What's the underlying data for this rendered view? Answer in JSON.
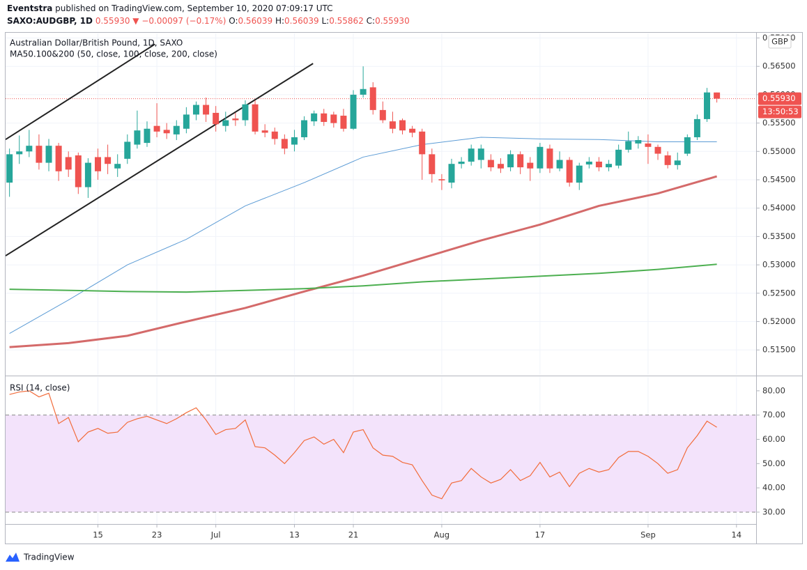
{
  "header": {
    "author": "Eventstra",
    "published": "published on TradingView.com, September 10, 2020 07:09:17 UTC",
    "symbol": "SAXO:AUDGBP, 1D",
    "price": "0.55930",
    "change": "▼ −0.00097 (−0.17%)",
    "ohlc": [
      {
        "label": "O:",
        "value": "0.56039"
      },
      {
        "label": "H:",
        "value": "0.56039"
      },
      {
        "label": "L:",
        "value": "0.55862"
      },
      {
        "label": "C:",
        "value": "0.55930"
      }
    ],
    "currency": "GBP",
    "footer": "TradingView"
  },
  "chart_data": [
    {
      "type": "candlestick",
      "title": "Australian Dollar/British Pound, 1D, SAXO",
      "subtitle": "MA50.100&200 (50, close, 100, close, 200, close)",
      "up_color": "#26a69a",
      "down_color": "#ef5350",
      "grid": true,
      "xlim": [
        -0.4,
        76
      ],
      "xticks": [
        {
          "value": 9,
          "label": "15"
        },
        {
          "value": 15,
          "label": "23"
        },
        {
          "value": 21,
          "label": "Jul"
        },
        {
          "value": 29,
          "label": "13"
        },
        {
          "value": 35,
          "label": "21"
        },
        {
          "value": 44,
          "label": "Aug"
        },
        {
          "value": 54,
          "label": "17"
        },
        {
          "value": 65,
          "label": "Sep"
        },
        {
          "value": 74,
          "label": "14"
        }
      ],
      "ylim": [
        0.5106,
        0.5708
      ],
      "yticks": [
        {
          "value": 0.515,
          "label": "0.51500"
        },
        {
          "value": 0.52,
          "label": "0.52000"
        },
        {
          "value": 0.525,
          "label": "0.52500"
        },
        {
          "value": 0.53,
          "label": "0.53000"
        },
        {
          "value": 0.535,
          "label": "0.53500"
        },
        {
          "value": 0.54,
          "label": "0.54000"
        },
        {
          "value": 0.545,
          "label": "0.54500"
        },
        {
          "value": 0.55,
          "label": "0.55000"
        },
        {
          "value": 0.555,
          "label": "0.55500"
        },
        {
          "value": 0.56,
          "label": "0.56000"
        },
        {
          "value": 0.565,
          "label": "0.56500"
        },
        {
          "value": 0.57,
          "label": "0.57000"
        }
      ],
      "open": [
        0.5445,
        0.5495,
        0.55,
        0.551,
        0.548,
        0.551,
        0.549,
        0.5493,
        0.5437,
        0.549,
        0.549,
        0.547,
        0.5487,
        0.5512,
        0.5515,
        0.5545,
        0.5538,
        0.553,
        0.554,
        0.5565,
        0.5582,
        0.5568,
        0.5545,
        0.5558,
        0.5555,
        0.5583,
        0.5537,
        0.5535,
        0.5522,
        0.5512,
        0.5525,
        0.5553,
        0.5567,
        0.5565,
        0.5563,
        0.554,
        0.56,
        0.5613,
        0.5573,
        0.5553,
        0.5555,
        0.554,
        0.5535,
        0.5495,
        0.5451,
        0.5445,
        0.5478,
        0.5482,
        0.5485,
        0.5485,
        0.5478,
        0.5472,
        0.5495,
        0.548,
        0.547,
        0.5505,
        0.547,
        0.5485,
        0.5445,
        0.5477,
        0.5482,
        0.5472,
        0.5475,
        0.5503,
        0.5514,
        0.5514,
        0.5508,
        0.5493,
        0.5476,
        0.5496,
        0.5525,
        0.5557,
        0.56039
      ],
      "high": [
        0.5505,
        0.5528,
        0.5538,
        0.553,
        0.5522,
        0.5515,
        0.55,
        0.5498,
        0.5488,
        0.5505,
        0.5512,
        0.5495,
        0.553,
        0.5572,
        0.5553,
        0.5585,
        0.555,
        0.5555,
        0.5578,
        0.5588,
        0.5595,
        0.558,
        0.557,
        0.5568,
        0.559,
        0.559,
        0.5548,
        0.5542,
        0.553,
        0.5538,
        0.5562,
        0.5572,
        0.5575,
        0.557,
        0.5575,
        0.5608,
        0.565,
        0.5622,
        0.5588,
        0.557,
        0.5558,
        0.5545,
        0.554,
        0.5505,
        0.546,
        0.5487,
        0.549,
        0.5512,
        0.5512,
        0.5495,
        0.5488,
        0.5502,
        0.55,
        0.549,
        0.5515,
        0.5512,
        0.55,
        0.549,
        0.548,
        0.549,
        0.549,
        0.5485,
        0.5512,
        0.5535,
        0.5527,
        0.553,
        0.5512,
        0.55,
        0.5498,
        0.553,
        0.5565,
        0.5612,
        0.56039
      ],
      "low": [
        0.542,
        0.5478,
        0.549,
        0.5468,
        0.5465,
        0.5448,
        0.5455,
        0.5425,
        0.5418,
        0.545,
        0.546,
        0.5455,
        0.5478,
        0.5505,
        0.5508,
        0.5525,
        0.5522,
        0.552,
        0.5532,
        0.5555,
        0.5552,
        0.5535,
        0.5535,
        0.5545,
        0.5545,
        0.553,
        0.5525,
        0.5512,
        0.5495,
        0.55,
        0.552,
        0.5545,
        0.5545,
        0.5542,
        0.5535,
        0.5538,
        0.5595,
        0.5565,
        0.555,
        0.5532,
        0.553,
        0.5525,
        0.545,
        0.5445,
        0.5432,
        0.5435,
        0.547,
        0.5475,
        0.547,
        0.5465,
        0.5462,
        0.5465,
        0.546,
        0.5448,
        0.5462,
        0.5462,
        0.5465,
        0.5438,
        0.5432,
        0.547,
        0.5465,
        0.5465,
        0.547,
        0.5498,
        0.5505,
        0.5478,
        0.5485,
        0.547,
        0.5468,
        0.5492,
        0.552,
        0.5552,
        0.55862
      ],
      "close": [
        0.5495,
        0.55,
        0.551,
        0.548,
        0.551,
        0.5465,
        0.5468,
        0.5437,
        0.548,
        0.5465,
        0.5478,
        0.5478,
        0.5517,
        0.5537,
        0.554,
        0.5535,
        0.5532,
        0.5545,
        0.5565,
        0.5582,
        0.5565,
        0.5548,
        0.5555,
        0.5555,
        0.5583,
        0.5535,
        0.5533,
        0.5522,
        0.5505,
        0.5525,
        0.5555,
        0.5567,
        0.5552,
        0.555,
        0.554,
        0.56,
        0.561,
        0.5573,
        0.5555,
        0.554,
        0.5537,
        0.5533,
        0.5495,
        0.546,
        0.5449,
        0.5478,
        0.5482,
        0.5505,
        0.5505,
        0.5472,
        0.547,
        0.5495,
        0.5472,
        0.547,
        0.5508,
        0.547,
        0.5485,
        0.5445,
        0.5475,
        0.5482,
        0.5472,
        0.5478,
        0.5503,
        0.5518,
        0.552,
        0.5508,
        0.5496,
        0.5476,
        0.5484,
        0.5525,
        0.5557,
        0.5604,
        0.5593
      ],
      "price_label": "0.55930",
      "countdown": "13:50:53",
      "ma_series": [
        {
          "color": "#5b9bd5",
          "width": 1,
          "x": [
            0,
            6,
            12,
            18,
            24,
            30,
            36,
            42,
            48,
            54,
            60,
            66,
            72
          ],
          "values": [
            0.5179,
            0.5238,
            0.53,
            0.5345,
            0.5404,
            0.5445,
            0.549,
            0.5512,
            0.5525,
            0.5522,
            0.5521,
            0.5517,
            0.5517
          ]
        },
        {
          "color": "#d46a6a",
          "width": 3,
          "x": [
            0,
            6,
            12,
            18,
            24,
            30,
            36,
            42,
            48,
            54,
            60,
            66,
            72
          ],
          "values": [
            0.5155,
            0.5162,
            0.5175,
            0.52,
            0.5224,
            0.5253,
            0.5281,
            0.5312,
            0.5343,
            0.5371,
            0.5404,
            0.5426,
            0.5456
          ]
        },
        {
          "color": "#4caf50",
          "width": 2,
          "x": [
            0,
            12,
            18,
            24,
            30,
            36,
            42,
            48,
            54,
            60,
            66,
            72
          ],
          "values": [
            0.5257,
            0.5253,
            0.5252,
            0.5255,
            0.5258,
            0.5263,
            0.527,
            0.5275,
            0.528,
            0.5285,
            0.5292,
            0.5301
          ]
        }
      ],
      "drawings": [
        {
          "color": "#222222",
          "x": [
            -0.4,
            14.8
          ],
          "values": [
            0.5521,
            0.5689
          ]
        },
        {
          "color": "#222222",
          "x": [
            -0.4,
            30.9
          ],
          "values": [
            0.5316,
            0.5655
          ]
        }
      ]
    },
    {
      "type": "line",
      "title": "RSI (14, close)",
      "color": "#f26c3b",
      "band": [
        30,
        70
      ],
      "band_color": "#f3e3fb",
      "xlim": [
        -0.4,
        76
      ],
      "ylim": [
        25.1,
        85.7
      ],
      "yticks": [
        {
          "value": 30,
          "label": "30.00"
        },
        {
          "value": 40,
          "label": "40.00"
        },
        {
          "value": 50,
          "label": "50.00"
        },
        {
          "value": 60,
          "label": "60.00"
        },
        {
          "value": 70,
          "label": "70.00"
        },
        {
          "value": 80,
          "label": "80.00"
        }
      ],
      "values": [
        78.5,
        79.5,
        80,
        77.5,
        79,
        66.5,
        69,
        59,
        63,
        64.5,
        62.5,
        63,
        67,
        68.5,
        69.5,
        68,
        66.5,
        68.5,
        71,
        73,
        68,
        62,
        64,
        64.5,
        68,
        57,
        56.5,
        53.5,
        50,
        54.5,
        59.5,
        61,
        58,
        60,
        54.5,
        63,
        64,
        56.5,
        53.5,
        53,
        50.5,
        49.5,
        43,
        37,
        35.5,
        42,
        43,
        48,
        44.5,
        42,
        43.5,
        47.5,
        43,
        45,
        50.5,
        44.5,
        46.5,
        40.5,
        46,
        48,
        46.5,
        47.5,
        52.5,
        55,
        55,
        53,
        50,
        46,
        47.5,
        56.5,
        61.5,
        67.5,
        65
      ]
    }
  ]
}
